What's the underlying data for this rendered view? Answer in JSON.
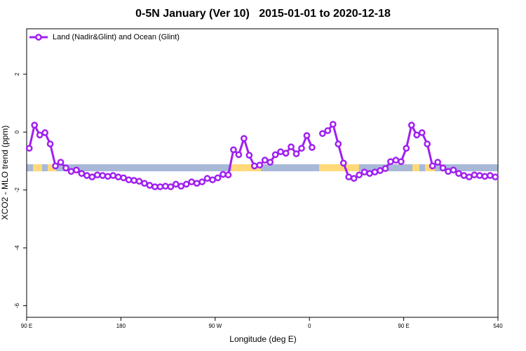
{
  "chart_data": {
    "type": "line",
    "title": "0-5N January (Ver 10)   2015-01-01 to 2020-12-18",
    "xlabel": "Longitude (deg E)",
    "ylabel": "XCO2 - MLO trend (ppm)",
    "xlim": [
      90,
      540
    ],
    "xticks": [
      {
        "value": 90,
        "label": "90 E"
      },
      180,
      {
        "value": 270,
        "label": "90 W"
      },
      {
        "value": 360,
        "label": "0"
      },
      {
        "value": 450,
        "label": "90 E"
      },
      540
    ],
    "ylim": [
      -6.4,
      3.57
    ],
    "yticks": [
      2,
      0,
      -2,
      -4,
      -6
    ],
    "legend": "top-left",
    "x": [
      92.5,
      97.5,
      102.5,
      107.5,
      112.5,
      117.5,
      122.5,
      127.5,
      132.5,
      137.5,
      142.5,
      147.5,
      152.5,
      157.5,
      162.5,
      167.5,
      172.5,
      177.5,
      182.5,
      187.5,
      192.5,
      197.5,
      202.5,
      207.5,
      212.5,
      217.5,
      222.5,
      227.5,
      232.5,
      237.5,
      242.5,
      247.5,
      252.5,
      257.5,
      262.5,
      267.5,
      272.5,
      277.5,
      282.5,
      287.5,
      292.5,
      297.5,
      302.5,
      307.5,
      312.5,
      317.5,
      322.5,
      327.5,
      332.5,
      337.5,
      342.5,
      347.5,
      352.5,
      357.5,
      362.5,
      367.5,
      372.5,
      377.5,
      382.5,
      387.5,
      392.5,
      397.5,
      402.5,
      407.5,
      412.5,
      417.5,
      422.5,
      427.5,
      432.5,
      437.5,
      442.5,
      447.5,
      452.5,
      457.5,
      462.5,
      467.5,
      472.5,
      477.5,
      482.5,
      487.5,
      492.5,
      497.5,
      502.5,
      507.5,
      512.5,
      517.5,
      522.5,
      527.5,
      532.5,
      537.5
    ],
    "series": [
      {
        "name": "Land (Nadir&Glint) and Ocean (Glint)",
        "color": "#a020f0",
        "values": [
          -0.56,
          0.24,
          -0.1,
          -0.02,
          -0.41,
          -1.17,
          -1.04,
          -1.24,
          -1.36,
          -1.31,
          -1.43,
          -1.5,
          -1.55,
          -1.48,
          -1.5,
          -1.53,
          -1.5,
          -1.55,
          -1.58,
          -1.65,
          -1.67,
          -1.7,
          -1.77,
          -1.84,
          -1.89,
          -1.89,
          -1.87,
          -1.89,
          -1.8,
          -1.87,
          -1.8,
          -1.72,
          -1.77,
          -1.72,
          -1.6,
          -1.65,
          -1.58,
          -1.46,
          -1.48,
          -0.61,
          -0.78,
          -0.22,
          -0.8,
          -1.17,
          -1.14,
          -0.97,
          -1.04,
          -0.78,
          -0.68,
          -0.73,
          -0.51,
          -0.75,
          -0.56,
          -0.12,
          -0.53,
          null,
          -0.05,
          0.05,
          0.27,
          -0.41,
          -1.07,
          -1.55,
          -1.6,
          -1.48,
          -1.38,
          -1.43,
          -1.38,
          -1.33,
          -1.26,
          -1.02,
          -0.97,
          -1.02,
          -0.56,
          0.24,
          -0.1,
          -0.02,
          -0.41,
          -1.17,
          -1.04,
          -1.24,
          -1.36,
          -1.31,
          -1.43,
          -1.5,
          -1.55,
          -1.48,
          -1.5,
          -1.53,
          -1.5,
          -1.55
        ]
      }
    ]
  }
}
